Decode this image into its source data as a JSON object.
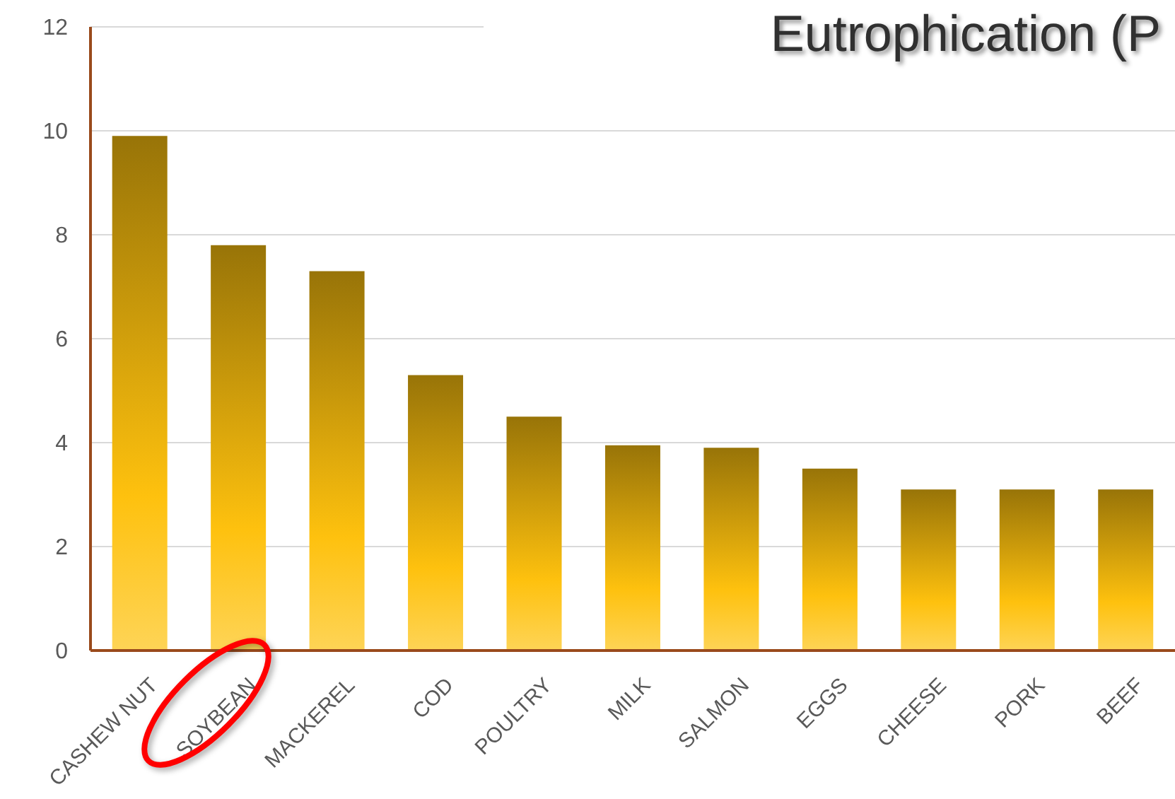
{
  "chart_data": {
    "type": "bar",
    "title": "Eutrophication (P",
    "categories": [
      "CASHEW NUT",
      "SOYBEAN",
      "MACKEREL",
      "COD",
      "POULTRY",
      "MILK",
      "SALMON",
      "EGGS",
      "CHEESE",
      "PORK",
      "BEEF"
    ],
    "values": [
      9.9,
      7.8,
      7.3,
      5.3,
      4.5,
      3.95,
      3.9,
      3.5,
      3.1,
      3.1,
      3.1
    ],
    "color": "#fec10e",
    "ylim": [
      0,
      12
    ],
    "yticks": [
      0,
      2,
      4,
      6,
      8,
      10,
      12
    ],
    "grid": "y"
  }
}
